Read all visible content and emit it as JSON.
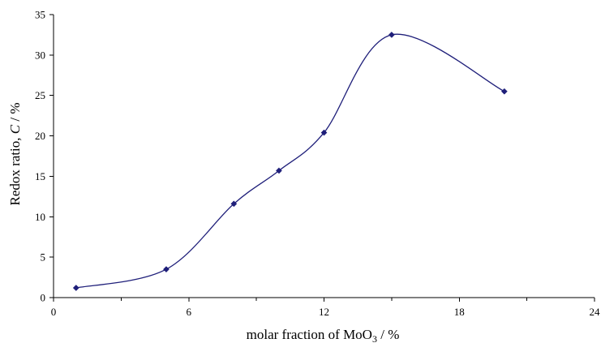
{
  "chart_data": {
    "type": "scatter",
    "title": "",
    "xlabel_parts": [
      "molar fraction of MoO",
      "3",
      " / %"
    ],
    "ylabel_parts": [
      "Redox ratio, ",
      "C",
      " / %"
    ],
    "xlim": [
      0,
      24
    ],
    "ylim": [
      0,
      35
    ],
    "xticks": [
      "0",
      "6",
      "12",
      "18",
      "24"
    ],
    "yticks": [
      "0",
      "5",
      "10",
      "15",
      "20",
      "25",
      "30",
      "35"
    ],
    "grid": false,
    "legend": false,
    "series": [
      {
        "color": "#1f1f7a",
        "marker": "diamond",
        "smooth_line": true,
        "x": [
          1,
          5,
          8,
          10,
          12,
          15,
          20
        ],
        "y": [
          1.2,
          3.5,
          11.6,
          15.7,
          20.4,
          32.5,
          25.5
        ]
      }
    ]
  }
}
